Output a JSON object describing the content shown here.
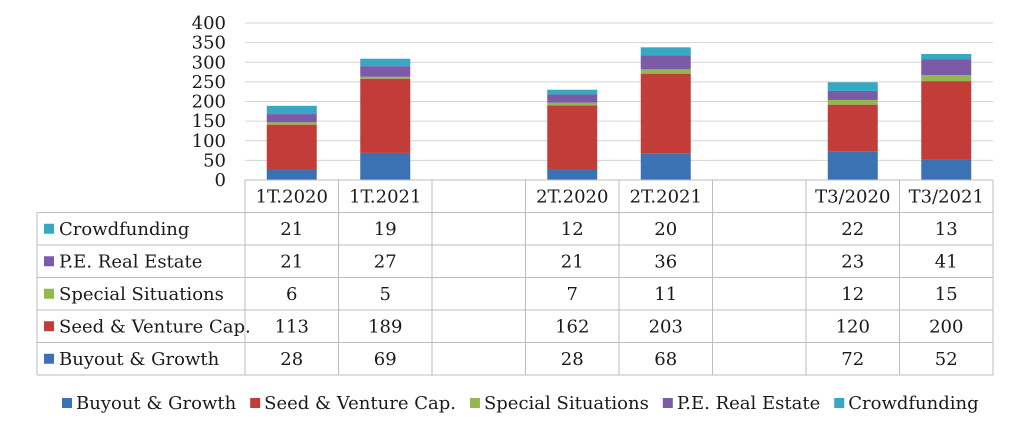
{
  "chart_data": {
    "type": "bar",
    "stacked": true,
    "categories": [
      "1T.2020",
      "1T.2021",
      "",
      "2T.2020",
      "2T.2021",
      "",
      "T3/2020",
      "T3/2021"
    ],
    "ylim": [
      0,
      400
    ],
    "yticks": [
      0,
      50,
      100,
      150,
      200,
      250,
      300,
      350,
      400
    ],
    "grid": true,
    "legend_position": "bottom",
    "series": [
      {
        "name": "Buyout & Growth",
        "color": "#3b72b3",
        "values": [
          28,
          69,
          null,
          28,
          68,
          null,
          72,
          52
        ]
      },
      {
        "name": "Seed & Venture Cap.",
        "color": "#c23d3a",
        "values": [
          113,
          189,
          null,
          162,
          203,
          null,
          120,
          200
        ]
      },
      {
        "name": "Special Situations",
        "color": "#93b850",
        "values": [
          6,
          5,
          null,
          7,
          11,
          null,
          12,
          15
        ]
      },
      {
        "name": "P.E. Real Estate",
        "color": "#7b5ba6",
        "values": [
          21,
          27,
          null,
          21,
          36,
          null,
          23,
          41
        ]
      },
      {
        "name": "Crowdfunding",
        "color": "#37a7c2",
        "values": [
          21,
          19,
          null,
          12,
          20,
          null,
          22,
          13
        ]
      }
    ]
  }
}
